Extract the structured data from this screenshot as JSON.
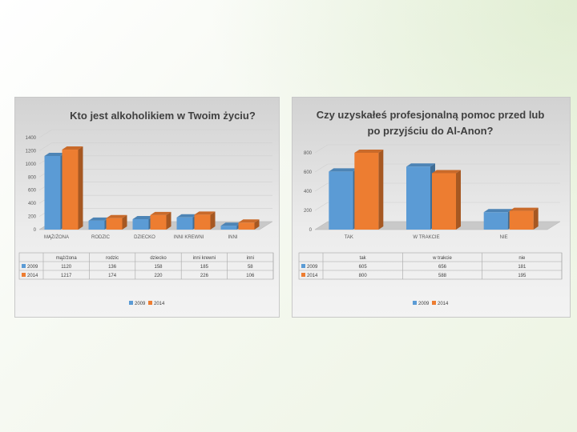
{
  "colors": {
    "s2009": "#5b9bd5",
    "s2014": "#ed7d31",
    "grid": "#d0d0d0"
  },
  "chart_data": [
    {
      "type": "bar",
      "title_lines": [
        "Kto jest alkoholikiem w Twoim życiu?"
      ],
      "categories": [
        "MĄŻ/ŻONA",
        "RODZIC",
        "DZIECKO",
        "INNI KREWNI",
        "INNI"
      ],
      "table_categories": [
        "mąż/żona",
        "rodzic",
        "dziecko",
        "inni krewni",
        "inni"
      ],
      "series": [
        {
          "name": "2009",
          "values": [
            1120,
            136,
            158,
            185,
            58
          ]
        },
        {
          "name": "2014",
          "values": [
            1217,
            174,
            220,
            226,
            106
          ]
        }
      ],
      "table_values": [
        [
          "1120",
          "136",
          "158",
          "185",
          "58"
        ],
        [
          "1217",
          "174",
          "220",
          "226",
          "106"
        ]
      ],
      "yticks": [
        "0",
        "200",
        "400",
        "600",
        "800",
        "1000",
        "1200",
        "1400"
      ],
      "ylim": [
        0,
        1400
      ],
      "legend": [
        "2009",
        "2014"
      ],
      "legend_position": "bottom",
      "grid": true
    },
    {
      "type": "bar",
      "title_lines": [
        "Czy uzyskałeś profesjonalną pomoc przed lub",
        "po przyjściu do Al-Anon?"
      ],
      "categories": [
        "TAK",
        "W TRAKCIE",
        "NIE"
      ],
      "table_categories": [
        "tak",
        "w trakcie",
        "nie"
      ],
      "series": [
        {
          "name": "2009",
          "values": [
            605,
            656,
            181
          ]
        },
        {
          "name": "2014",
          "values": [
            800,
            588,
            195
          ]
        }
      ],
      "table_values": [
        [
          "605",
          "656",
          "181"
        ],
        [
          "800",
          "588",
          "195"
        ]
      ],
      "yticks": [
        "0",
        "200",
        "400",
        "600",
        "800"
      ],
      "ylim": [
        0,
        800
      ],
      "legend": [
        "2009",
        "2014"
      ],
      "legend_position": "bottom",
      "grid": true
    }
  ]
}
